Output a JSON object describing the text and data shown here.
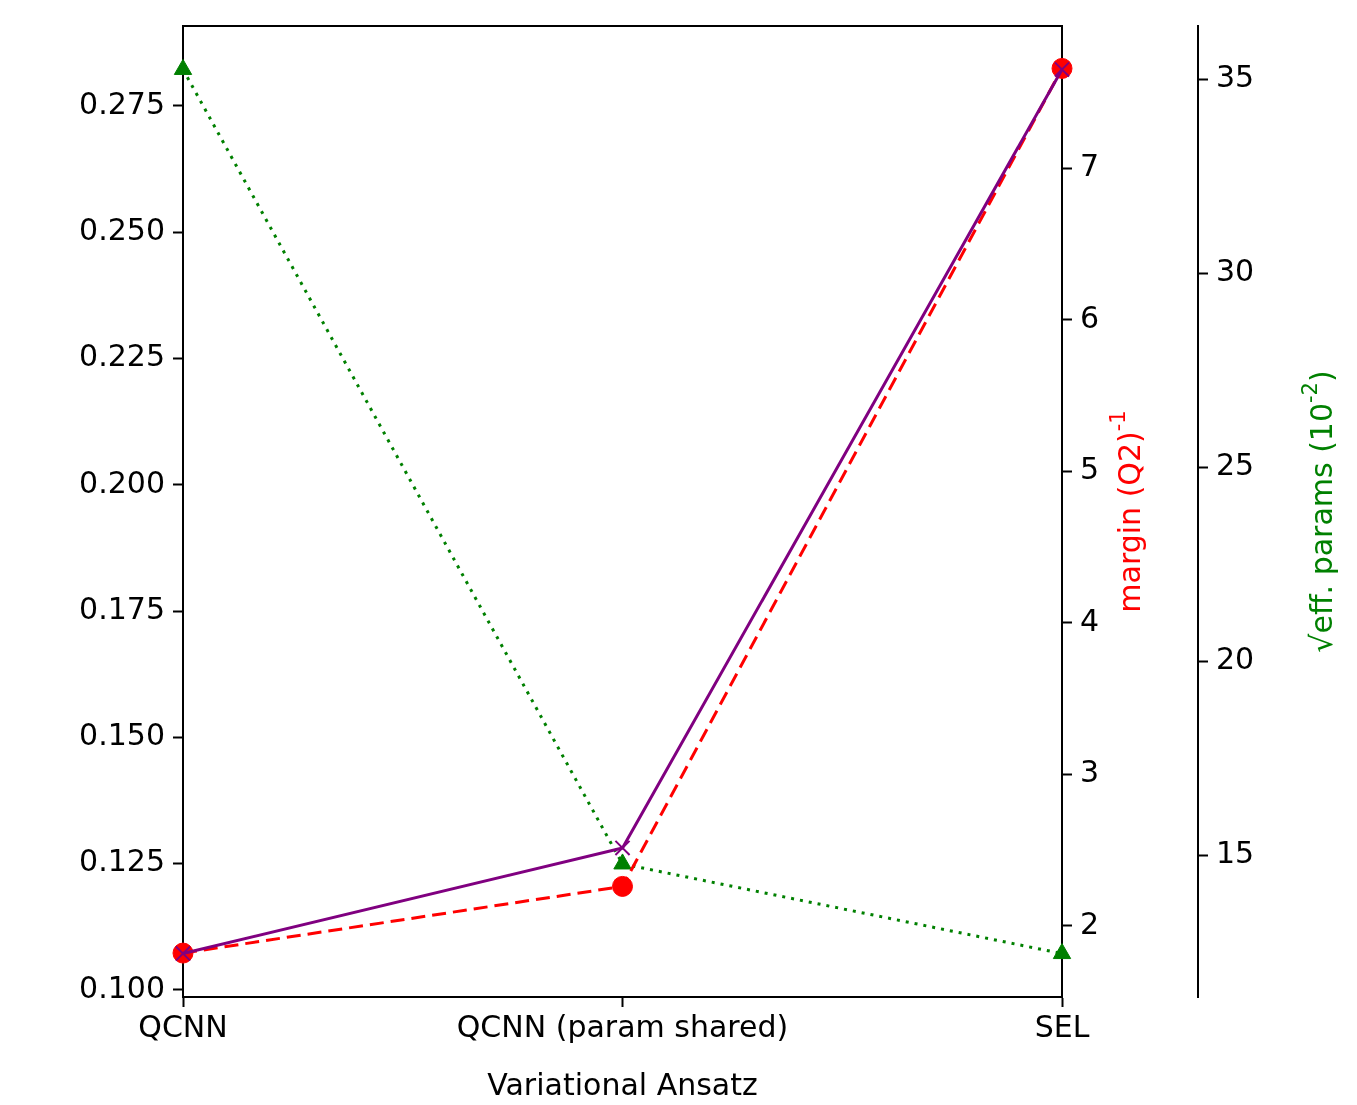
{
  "chart_data": {
    "type": "line",
    "xlabel": "Variational Ansatz",
    "y2label": "margin (Q2)$^{-1}$",
    "y3label": "√eff. params (10$^{-2}$)",
    "categories": [
      "QCNN",
      "QCNN (param shared)",
      "SEL"
    ],
    "ylim": [
      0.0986,
      0.2908
    ],
    "yticks": [
      {
        "value": 0.1,
        "label": "0.100"
      },
      {
        "value": 0.125,
        "label": "0.125"
      },
      {
        "value": 0.15,
        "label": "0.150"
      },
      {
        "value": 0.175,
        "label": "0.175"
      },
      {
        "value": 0.2,
        "label": "0.200"
      },
      {
        "value": 0.225,
        "label": "0.225"
      },
      {
        "value": 0.25,
        "label": "0.250"
      },
      {
        "value": 0.275,
        "label": "0.275"
      }
    ],
    "y2lim": [
      1.53,
      7.94
    ],
    "y2ticks": [
      2,
      3,
      4,
      5,
      6,
      7
    ],
    "y3lim": [
      11.34,
      36.37
    ],
    "y3ticks": [
      15,
      20,
      25,
      30,
      35
    ],
    "legend": false,
    "series": [
      {
        "color": "#800080",
        "values": [
          0.1072,
          0.1281,
          0.2822
        ],
        "marker": "cross",
        "line_style": "solid"
      },
      {
        "color": "#ff0000",
        "values": [
          1.82,
          2.26,
          7.66
        ],
        "axis": "y2",
        "marker": "circle",
        "line_style": "dashed"
      },
      {
        "color": "#008000",
        "values": [
          35.25,
          14.77,
          12.46
        ],
        "axis": "y3",
        "marker": "triangle",
        "line_style": "dotted"
      }
    ]
  }
}
